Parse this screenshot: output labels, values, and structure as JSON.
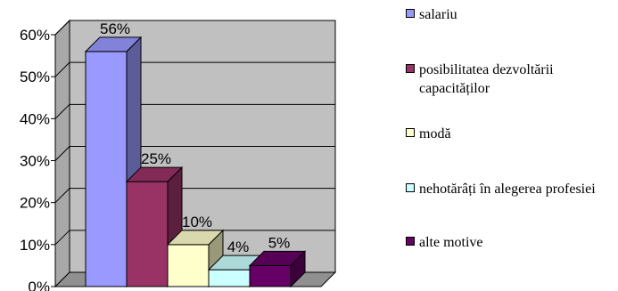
{
  "chart_data": {
    "type": "bar",
    "categories": [
      "salariu",
      "posibilitatea dezvoltării capacităților",
      "modă",
      "nehotărâți în alegerea profesiei",
      "alte motive"
    ],
    "values": [
      56,
      25,
      10,
      4,
      5
    ],
    "value_labels": [
      "56%",
      "25%",
      "10%",
      "4%",
      "5%"
    ],
    "ylim": [
      0,
      60
    ],
    "yticks": [
      "0%",
      "10%",
      "20%",
      "30%",
      "40%",
      "50%",
      "60%"
    ],
    "grid": true,
    "legend_position": "right",
    "colors": [
      "#9999ff",
      "#993366",
      "#ffffcc",
      "#ccffff",
      "#660066"
    ],
    "plot_background": "#c0c0c0"
  },
  "legend": {
    "items": [
      {
        "label": "salariu",
        "color": "#9999ff"
      },
      {
        "label": "posibilitatea dezvoltării capacităților",
        "color": "#993366"
      },
      {
        "label": "modă",
        "color": "#ffffcc"
      },
      {
        "label": "nehotărâți în alegerea profesiei",
        "color": "#ccffff"
      },
      {
        "label": "alte motive",
        "color": "#660066"
      }
    ]
  }
}
